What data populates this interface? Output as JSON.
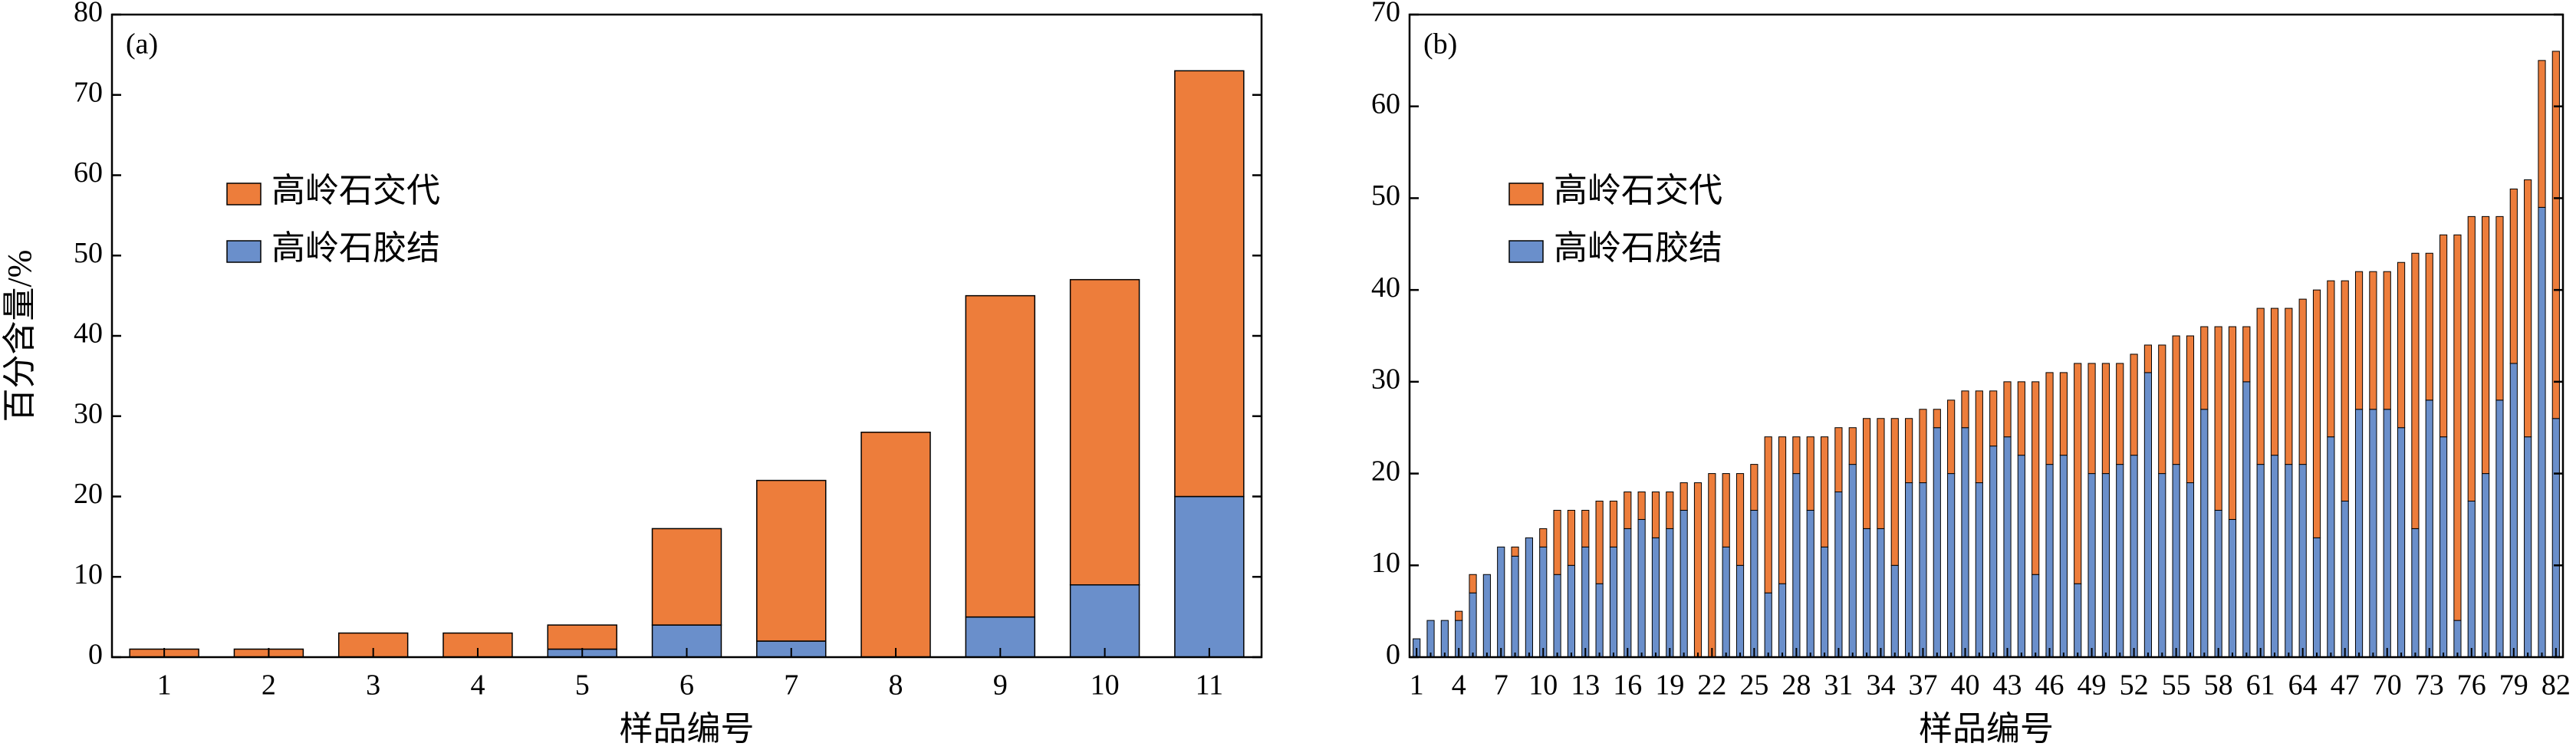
{
  "chart_data": [
    {
      "type": "bar",
      "stacked": true,
      "title": "(a)",
      "xlabel": "样品编号",
      "ylabel": "百分含量/%",
      "categories": [
        "1",
        "2",
        "3",
        "4",
        "5",
        "6",
        "7",
        "8",
        "9",
        "10",
        "11"
      ],
      "series": [
        {
          "name": "高岭石交代",
          "color": "#ed7d3b",
          "values": [
            1,
            1,
            3,
            3,
            3,
            12,
            20,
            28,
            40,
            38,
            53
          ]
        },
        {
          "name": "高岭石胶结",
          "color": "#6a8fcb",
          "values": [
            0,
            0,
            0,
            0,
            1,
            4,
            2,
            0,
            5,
            9,
            20
          ]
        }
      ],
      "ylim": [
        0,
        80
      ],
      "yticks": [
        0,
        10,
        20,
        30,
        40,
        50,
        60,
        70,
        80
      ],
      "legend": "upper left",
      "grid": false
    },
    {
      "type": "bar",
      "stacked": true,
      "title": "(b)",
      "xlabel": "样品编号",
      "categories": [
        "1",
        null,
        null,
        "4",
        null,
        null,
        "7",
        null,
        null,
        "10",
        null,
        null,
        "13",
        null,
        null,
        "16",
        null,
        null,
        "19",
        null,
        null,
        "22",
        null,
        null,
        "25",
        null,
        null,
        "28",
        null,
        null,
        "31",
        null,
        null,
        "34",
        null,
        null,
        "37",
        null,
        null,
        "40",
        null,
        null,
        "43",
        null,
        null,
        "46",
        null,
        null,
        "49",
        null,
        null,
        "52",
        null,
        null,
        "55",
        null,
        null,
        "58",
        null,
        null,
        "61",
        null,
        null,
        "64",
        null,
        null,
        "47",
        null,
        null,
        "70",
        null,
        null,
        "73",
        null,
        null,
        "76",
        null,
        null,
        "79",
        null,
        null,
        "82"
      ],
      "series": [
        {
          "name": "高岭石交代",
          "color": "#ed7d3b",
          "values": [
            0,
            0,
            0,
            1,
            2,
            0,
            0,
            1,
            0,
            2,
            7,
            6,
            4,
            9,
            5,
            4,
            3,
            5,
            4,
            3,
            19,
            20,
            8,
            10,
            5,
            17,
            16,
            4,
            8,
            12,
            7,
            4,
            12,
            12,
            16,
            7,
            8,
            2,
            8,
            4,
            10,
            6,
            6,
            8,
            21,
            10,
            9,
            24,
            12,
            12,
            11,
            11,
            3,
            14,
            14,
            16,
            9,
            20,
            21,
            6,
            17,
            16,
            17,
            18,
            27,
            17,
            24,
            15,
            15,
            15,
            18,
            30,
            16,
            22,
            42,
            31,
            28,
            20,
            19,
            28,
            16,
            40
          ]
        },
        {
          "name": "高岭石胶结",
          "color": "#6a8fcb",
          "values": [
            2,
            4,
            4,
            4,
            7,
            9,
            12,
            11,
            13,
            12,
            9,
            10,
            12,
            8,
            12,
            14,
            15,
            13,
            14,
            16,
            0,
            0,
            12,
            10,
            16,
            7,
            8,
            20,
            16,
            12,
            18,
            21,
            14,
            14,
            10,
            19,
            19,
            25,
            20,
            25,
            19,
            23,
            24,
            22,
            9,
            21,
            22,
            8,
            20,
            20,
            21,
            22,
            31,
            20,
            21,
            19,
            27,
            16,
            15,
            30,
            21,
            22,
            21,
            21,
            13,
            24,
            17,
            27,
            27,
            27,
            25,
            14,
            28,
            24,
            4,
            17,
            20,
            28,
            32,
            24,
            49,
            26
          ]
        }
      ],
      "ylim": [
        0,
        70
      ],
      "yticks": [
        0,
        10,
        20,
        30,
        40,
        50,
        60,
        70
      ],
      "legend": "upper left",
      "grid": false
    }
  ]
}
